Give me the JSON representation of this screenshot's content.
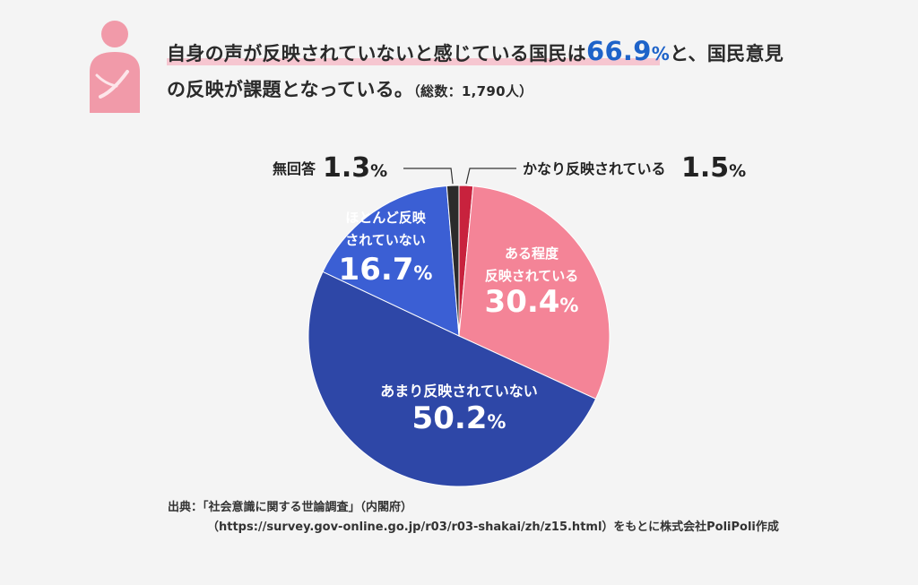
{
  "headline": {
    "line1_prefix": "自身の声が反映されていないと感じている国民は",
    "highlight_value": "66.9",
    "highlight_unit": "%",
    "line1_suffix": "と、国民意見",
    "line2": "の反映が課題となっている。",
    "sample_note": "（総数：1,790人）"
  },
  "colors": {
    "person_icon": "#f19aa9",
    "highlight_text": "#1e63c9",
    "underline": "#f6c6d0"
  },
  "chart_data": {
    "type": "pie",
    "start_angle_deg": 0,
    "direction": "clockwise",
    "slices": [
      {
        "label": "かなり反映されている",
        "value": 1.5,
        "color": "#c8223d",
        "label_style": "outside"
      },
      {
        "label": "ある程度\n反映されている",
        "value": 30.4,
        "color": "#f48497",
        "label_style": "inside"
      },
      {
        "label": "あまり反映されていない",
        "value": 50.2,
        "color": "#2e47a7",
        "label_style": "inside"
      },
      {
        "label": "ほとんど反映\nされていない",
        "value": 16.7,
        "color": "#3b5fd4",
        "label_style": "inside"
      },
      {
        "label": "無回答",
        "value": 1.3,
        "color": "#2b2b2b",
        "label_style": "outside"
      }
    ],
    "value_unit": "%"
  },
  "source": {
    "line1": "出典：「社会意識に関する世論調査」（内閣府）",
    "line2": "（https://survey.gov-online.go.jp/r03/r03-shakai/zh/z15.html）をもとに株式会社PoliPoli作成"
  }
}
